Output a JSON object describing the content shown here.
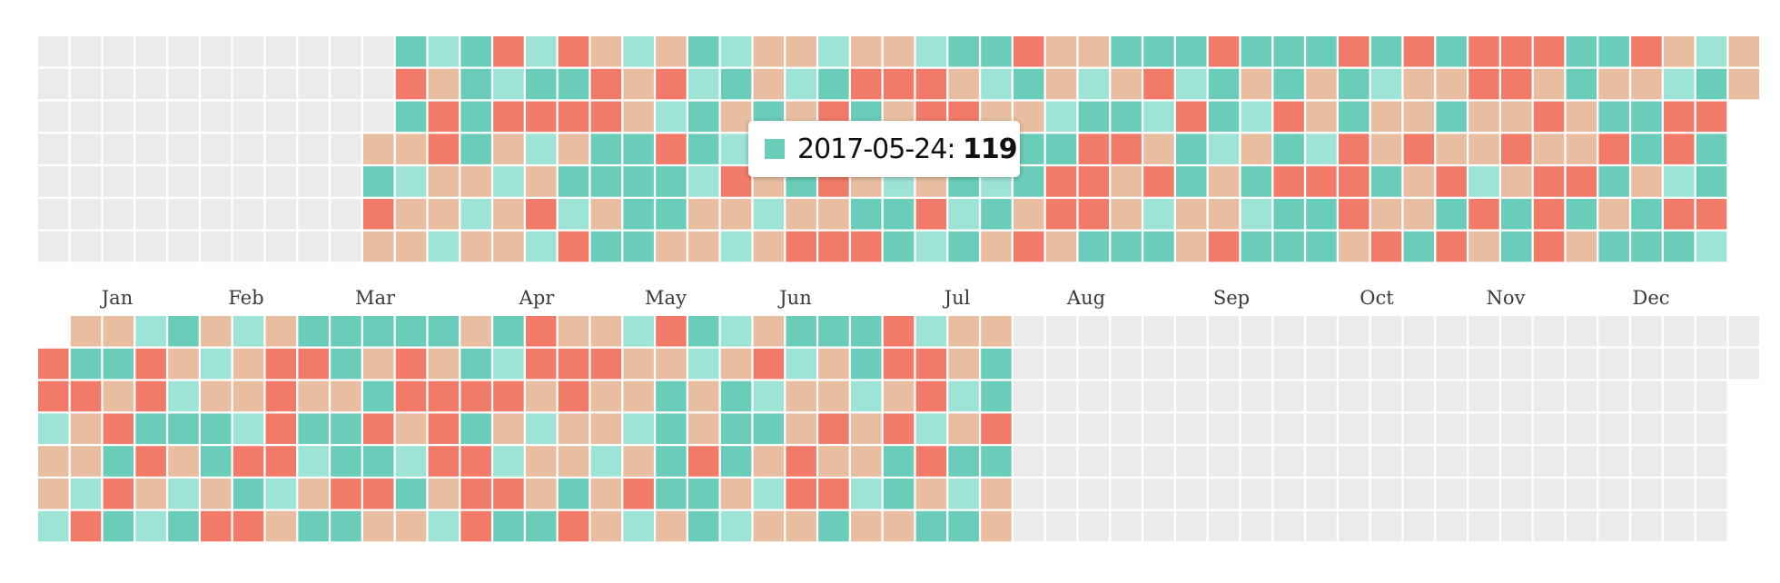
{
  "colors": {
    "empty": "#ebebeb",
    "high": "#f27a68",
    "medium": "#69cdb9",
    "light": "#9de3d6",
    "low": "#e9bea0"
  },
  "tooltip": {
    "date": "2017-05-24",
    "separator": ": ",
    "value": "119",
    "swatch_color": "#69cdb9"
  },
  "chart_data": {
    "type": "heatmap",
    "cell_levels": [
      "empty",
      "high",
      "medium",
      "light",
      "low"
    ],
    "months": [
      "Jan",
      "Feb",
      "Mar",
      "Apr",
      "May",
      "Jun",
      "Jul",
      "Aug",
      "Sep",
      "Oct",
      "Nov",
      "Dec"
    ],
    "years": [
      {
        "start_weekday": 0,
        "grid": [
          "00000000000CLCHLHLLLMLLLLLLLMMHLLMMMHMMMHMHMHHHMMHLLLLHHM",
          "00000000000HLMLMMHLHLMLLMHHHLLMLLLHLMLMLMLLLHHLMLLLMLMH",
          "00000000000MHMHHHHLLMLMLHMLHHLLLMMLHMLHLMLLMLLHLMMHHMM",
          "0000000000LLHMLLLMMHMLMLLHHLHHMMHHLMLLMLHLHLLHLLHMHMMH",
          "0000000000MLLLLLMMMMLHLMHLLLMLMHHLHMLMHHHMLHLLHHMLLM",
          "0000000000HLLLLHLLMMLLLLLMMHLMLHHLLLLLMMHLLMHMHMLMHHLL",
          "0000000000LLLLLLHMMLLLLHHHMLMLHLMMMLHMMMLHMHLMHLMMMLL"
        ]
      },
      {
        "start_weekday": 1,
        "grid": [
          "0LLLMLLLMMMMMLMHLLLHMLLMMMHLLL",
          "HMMHLLLHHMLHLMLHHHLLLLHLLMHHLM",
          "HHLHLLLHLLMHHHHLHLLMLMLLLLLHLM",
          "LLHMMMLHMMHLHMLLLLLMLMMLHLHLLH",
          "LLMHLMHHLMMLHHLLLLLMHMLHLLMHMM",
          "LLHLLLMLLHHMLHHLMLHMMLLHHLMLLL",
          "LHMLMHHLMMLLLHMMHLLLMLLLMLLMML"
        ]
      }
    ]
  }
}
